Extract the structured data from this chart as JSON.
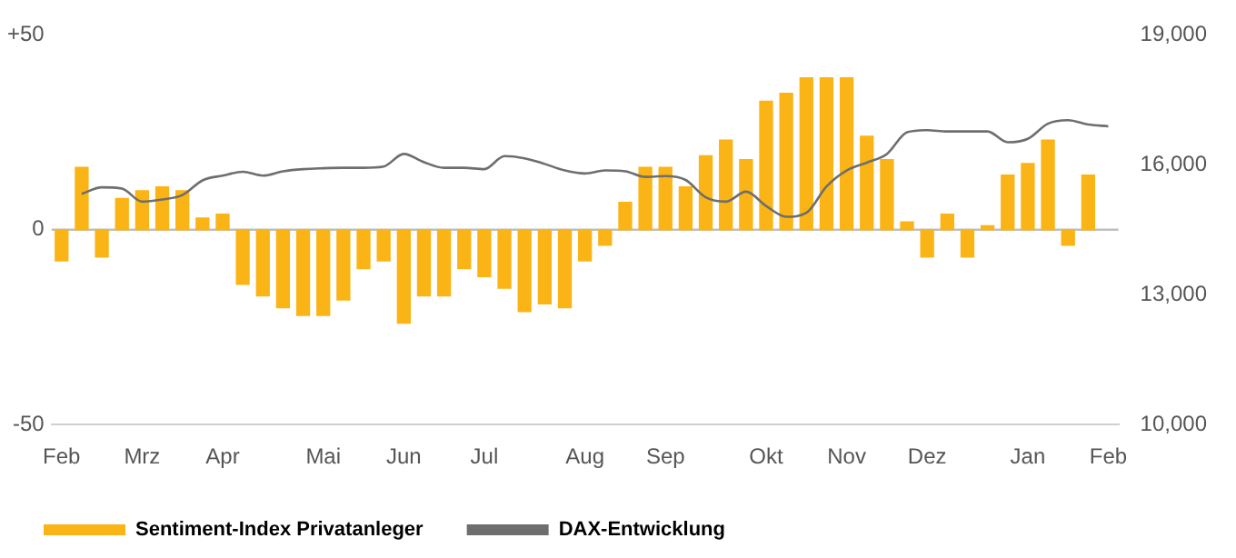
{
  "chart_data": {
    "type": "bar",
    "categories": [
      "Feb",
      null,
      null,
      null,
      "Mrz",
      null,
      null,
      null,
      "Apr",
      null,
      null,
      null,
      null,
      "Mai",
      null,
      null,
      null,
      "Jun",
      null,
      null,
      null,
      "Jul",
      null,
      null,
      null,
      null,
      "Aug",
      null,
      null,
      null,
      "Sep",
      null,
      null,
      null,
      null,
      "Okt",
      null,
      null,
      null,
      "Nov",
      null,
      null,
      null,
      "Dez",
      null,
      null,
      null,
      null,
      "Jan",
      null,
      null,
      null,
      "Feb"
    ],
    "series": [
      {
        "name": "Sentiment-Index Privatanleger",
        "color": "#fbb416",
        "values": [
          -8,
          16,
          -7,
          8,
          10,
          11,
          10,
          3,
          4,
          -14,
          -17,
          -20,
          -22,
          -22,
          -18,
          -10,
          -8,
          -24,
          -17,
          -17,
          -10,
          -12,
          -15,
          -21,
          -19,
          -20,
          -8,
          -4,
          7,
          16,
          16,
          11,
          19,
          23,
          18,
          33,
          35,
          39,
          39,
          39,
          24,
          18,
          2,
          -7,
          4,
          -7,
          1,
          14,
          17,
          23,
          -4,
          14,
          null
        ]
      },
      {
        "name": "DAX-Entwicklung",
        "type": "line",
        "axis": "y2",
        "color": "#6e6e6e",
        "values": [
          null,
          15330,
          15480,
          15450,
          15150,
          15200,
          15300,
          15640,
          15750,
          15840,
          15750,
          15850,
          15900,
          15920,
          15930,
          15930,
          15960,
          16250,
          16060,
          15930,
          15930,
          15900,
          16200,
          16150,
          16020,
          15870,
          15800,
          15870,
          15850,
          15720,
          15740,
          15650,
          15250,
          15150,
          15380,
          15050,
          14800,
          14890,
          15500,
          15870,
          16050,
          16250,
          16750,
          16800,
          16770,
          16770,
          16770,
          16520,
          16600,
          16950,
          17030,
          16930,
          16890
        ]
      }
    ],
    "ylim": [
      -50,
      50
    ],
    "yticks": [
      -50,
      0,
      {
        "value": 50,
        "label": "+50"
      }
    ],
    "y2lim": [
      10000,
      19000
    ],
    "y2ticks": [
      {
        "value": 10000,
        "label": "10,000"
      },
      {
        "value": 13000,
        "label": "13,000"
      },
      {
        "value": 16000,
        "label": "16,000"
      },
      {
        "value": 19000,
        "label": "19,000"
      }
    ],
    "ref_lines": [
      {
        "axis": "y",
        "value": 0,
        "color": "#bfbfbf"
      }
    ],
    "legend": "bottom"
  }
}
